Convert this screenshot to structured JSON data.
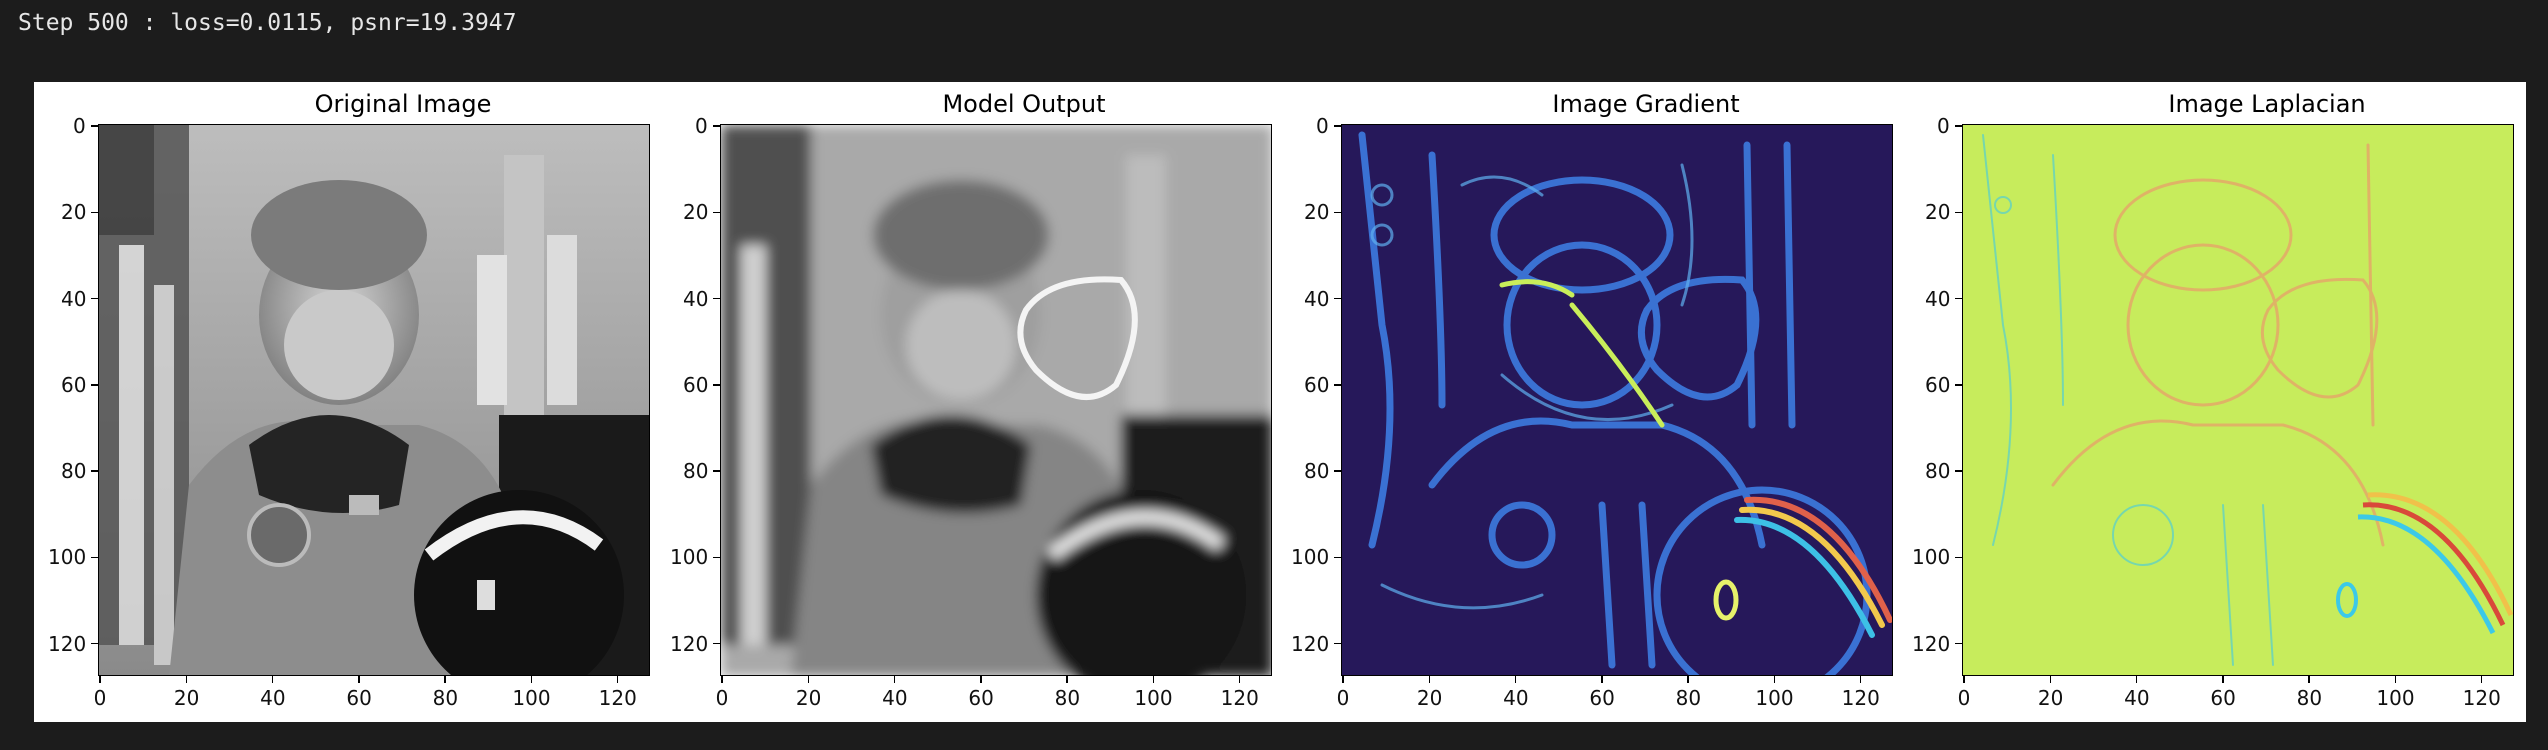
{
  "output": {
    "log_line": "Step 500 : loss=0.0115, psnr=19.3947"
  },
  "figure": {
    "panels": [
      {
        "title": "Original Image",
        "kind": "grayscale-photo"
      },
      {
        "title": "Model Output",
        "kind": "grayscale-blurred"
      },
      {
        "title": "Image Gradient",
        "kind": "magnitude-colormap"
      },
      {
        "title": "Image Laplacian",
        "kind": "diverging-colormap"
      }
    ],
    "x_ticks": [
      "0",
      "20",
      "40",
      "60",
      "80",
      "100",
      "120"
    ],
    "y_ticks": [
      "0",
      "20",
      "40",
      "60",
      "80",
      "100",
      "120"
    ],
    "image_size": 128,
    "colors": {
      "gradient_low": "#2a1a5e",
      "gradient_mid": "#3d7be0",
      "gradient_high": "#d8f25a",
      "laplacian_base": "#c7ec5c",
      "laplacian_pos": "#e0614a",
      "laplacian_neg": "#3cc9e8"
    }
  }
}
